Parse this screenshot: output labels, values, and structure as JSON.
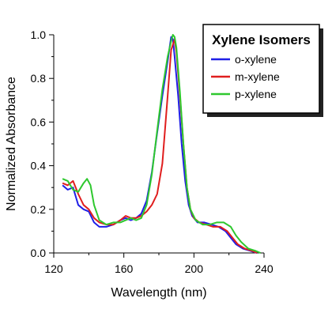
{
  "chart_data": {
    "type": "line",
    "title": "",
    "xlabel": "Wavelength (nm)",
    "ylabel": "Normalized Absorbance",
    "xlim": [
      120,
      240
    ],
    "ylim": [
      0,
      1.0
    ],
    "x_ticks": [
      "120",
      "160",
      "200",
      "240"
    ],
    "y_ticks": [
      "0.0",
      "0.2",
      "0.4",
      "0.6",
      "0.8",
      "1.0"
    ],
    "grid": false,
    "legend": {
      "title": "Xylene Isomers",
      "position": "top-right"
    },
    "series": [
      {
        "name": "o-xylene",
        "color": "#1f1fe6",
        "points": [
          [
            125,
            0.31
          ],
          [
            128,
            0.29
          ],
          [
            131,
            0.3
          ],
          [
            134,
            0.22
          ],
          [
            137,
            0.2
          ],
          [
            140,
            0.19
          ],
          [
            143,
            0.14
          ],
          [
            146,
            0.12
          ],
          [
            150,
            0.12
          ],
          [
            154,
            0.13
          ],
          [
            158,
            0.15
          ],
          [
            161,
            0.16
          ],
          [
            164,
            0.15
          ],
          [
            167,
            0.16
          ],
          [
            170,
            0.18
          ],
          [
            173,
            0.24
          ],
          [
            176,
            0.37
          ],
          [
            179,
            0.55
          ],
          [
            182,
            0.72
          ],
          [
            185,
            0.88
          ],
          [
            187,
            0.99
          ],
          [
            188,
            0.98
          ],
          [
            189,
            0.9
          ],
          [
            191,
            0.72
          ],
          [
            193,
            0.5
          ],
          [
            195,
            0.33
          ],
          [
            197,
            0.22
          ],
          [
            199,
            0.17
          ],
          [
            202,
            0.14
          ],
          [
            206,
            0.14
          ],
          [
            210,
            0.13
          ],
          [
            214,
            0.12
          ],
          [
            218,
            0.1
          ],
          [
            221,
            0.07
          ],
          [
            224,
            0.04
          ],
          [
            228,
            0.02
          ],
          [
            232,
            0.01
          ],
          [
            236,
            0.0
          ]
        ]
      },
      {
        "name": "m-xylene",
        "color": "#e01e1e",
        "points": [
          [
            125,
            0.32
          ],
          [
            128,
            0.31
          ],
          [
            131,
            0.33
          ],
          [
            134,
            0.27
          ],
          [
            137,
            0.22
          ],
          [
            140,
            0.2
          ],
          [
            143,
            0.16
          ],
          [
            146,
            0.14
          ],
          [
            150,
            0.13
          ],
          [
            154,
            0.13
          ],
          [
            158,
            0.15
          ],
          [
            161,
            0.17
          ],
          [
            164,
            0.16
          ],
          [
            167,
            0.16
          ],
          [
            170,
            0.17
          ],
          [
            173,
            0.19
          ],
          [
            176,
            0.22
          ],
          [
            179,
            0.27
          ],
          [
            182,
            0.41
          ],
          [
            185,
            0.72
          ],
          [
            187,
            0.93
          ],
          [
            189,
            0.98
          ],
          [
            190,
            0.92
          ],
          [
            192,
            0.72
          ],
          [
            194,
            0.5
          ],
          [
            196,
            0.3
          ],
          [
            198,
            0.2
          ],
          [
            200,
            0.16
          ],
          [
            203,
            0.14
          ],
          [
            207,
            0.13
          ],
          [
            211,
            0.12
          ],
          [
            215,
            0.12
          ],
          [
            219,
            0.1
          ],
          [
            222,
            0.07
          ],
          [
            225,
            0.04
          ],
          [
            229,
            0.02
          ],
          [
            233,
            0.01
          ],
          [
            236,
            0.0
          ]
        ]
      },
      {
        "name": "p-xylene",
        "color": "#2ec82e",
        "points": [
          [
            125,
            0.34
          ],
          [
            128,
            0.33
          ],
          [
            131,
            0.29
          ],
          [
            134,
            0.28
          ],
          [
            137,
            0.32
          ],
          [
            139,
            0.34
          ],
          [
            141,
            0.31
          ],
          [
            143,
            0.22
          ],
          [
            146,
            0.15
          ],
          [
            150,
            0.13
          ],
          [
            154,
            0.14
          ],
          [
            158,
            0.14
          ],
          [
            161,
            0.15
          ],
          [
            164,
            0.16
          ],
          [
            167,
            0.15
          ],
          [
            170,
            0.16
          ],
          [
            173,
            0.22
          ],
          [
            176,
            0.36
          ],
          [
            179,
            0.56
          ],
          [
            182,
            0.75
          ],
          [
            185,
            0.9
          ],
          [
            187,
            0.97
          ],
          [
            188,
            1.0
          ],
          [
            189,
            0.99
          ],
          [
            190,
            0.94
          ],
          [
            192,
            0.74
          ],
          [
            194,
            0.5
          ],
          [
            196,
            0.3
          ],
          [
            198,
            0.2
          ],
          [
            201,
            0.15
          ],
          [
            205,
            0.13
          ],
          [
            209,
            0.13
          ],
          [
            213,
            0.14
          ],
          [
            217,
            0.14
          ],
          [
            221,
            0.12
          ],
          [
            224,
            0.08
          ],
          [
            227,
            0.05
          ],
          [
            231,
            0.02
          ],
          [
            235,
            0.01
          ],
          [
            238,
            0.0
          ]
        ]
      }
    ]
  }
}
